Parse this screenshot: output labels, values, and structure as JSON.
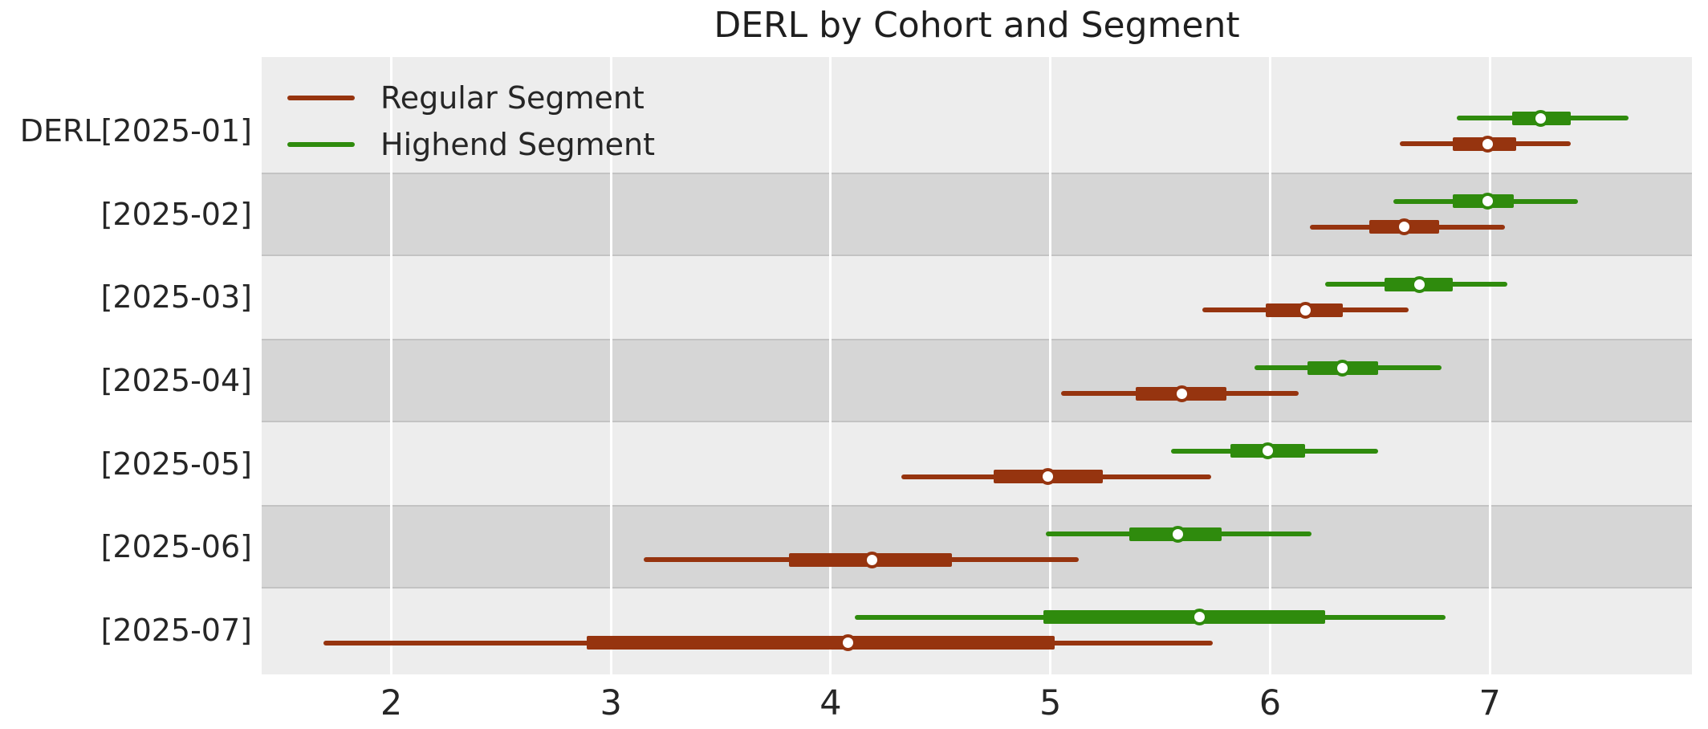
{
  "figure": {
    "title": "DERL by Cohort and Segment"
  },
  "chart_data": {
    "type": "forest",
    "title": "DERL by Cohort and Segment",
    "categories": [
      "DERL[2025-01]",
      "[2025-02]",
      "[2025-03]",
      "[2025-04]",
      "[2025-05]",
      "[2025-06]",
      "[2025-07]"
    ],
    "xlabel": "",
    "ylabel": "",
    "xticks": [
      2,
      3,
      4,
      5,
      6,
      7
    ],
    "xlim": [
      1.41,
      7.92
    ],
    "grid": "vertical-white-lines",
    "legend_position": "upper left",
    "band_colors": {
      "light": "#EDEDED",
      "dark": "#D6D6D6"
    },
    "series": [
      {
        "name": "Regular Segment",
        "color": "#96340F",
        "rows": [
          {
            "category": "DERL[2025-01]",
            "median": 6.99,
            "hdi_50": [
              6.83,
              7.12
            ],
            "hdi_94": [
              6.59,
              7.37
            ]
          },
          {
            "category": "[2025-02]",
            "median": 6.61,
            "hdi_50": [
              6.45,
              6.77
            ],
            "hdi_94": [
              6.18,
              7.07
            ]
          },
          {
            "category": "[2025-03]",
            "median": 6.16,
            "hdi_50": [
              5.98,
              6.33
            ],
            "hdi_94": [
              5.69,
              6.63
            ]
          },
          {
            "category": "[2025-04]",
            "median": 5.6,
            "hdi_50": [
              5.39,
              5.8
            ],
            "hdi_94": [
              5.05,
              6.13
            ]
          },
          {
            "category": "[2025-05]",
            "median": 4.99,
            "hdi_50": [
              4.74,
              5.24
            ],
            "hdi_94": [
              4.32,
              5.73
            ]
          },
          {
            "category": "[2025-06]",
            "median": 4.19,
            "hdi_50": [
              3.81,
              4.55
            ],
            "hdi_94": [
              3.15,
              5.13
            ]
          },
          {
            "category": "[2025-07]",
            "median": 4.08,
            "hdi_50": [
              2.89,
              5.02
            ],
            "hdi_94": [
              1.69,
              5.74
            ]
          }
        ]
      },
      {
        "name": "Highend Segment",
        "color": "#2F8B0D",
        "rows": [
          {
            "category": "DERL[2025-01]",
            "median": 7.23,
            "hdi_50": [
              7.1,
              7.37
            ],
            "hdi_94": [
              6.85,
              7.63
            ]
          },
          {
            "category": "[2025-02]",
            "median": 6.99,
            "hdi_50": [
              6.83,
              7.11
            ],
            "hdi_94": [
              6.56,
              7.4
            ]
          },
          {
            "category": "[2025-03]",
            "median": 6.68,
            "hdi_50": [
              6.52,
              6.83
            ],
            "hdi_94": [
              6.25,
              7.08
            ]
          },
          {
            "category": "[2025-04]",
            "median": 6.33,
            "hdi_50": [
              6.17,
              6.49
            ],
            "hdi_94": [
              5.93,
              6.78
            ]
          },
          {
            "category": "[2025-05]",
            "median": 5.99,
            "hdi_50": [
              5.82,
              6.16
            ],
            "hdi_94": [
              5.55,
              6.49
            ]
          },
          {
            "category": "[2025-06]",
            "median": 5.58,
            "hdi_50": [
              5.36,
              5.78
            ],
            "hdi_94": [
              4.98,
              6.19
            ]
          },
          {
            "category": "[2025-07]",
            "median": 5.68,
            "hdi_50": [
              4.97,
              6.25
            ],
            "hdi_94": [
              4.11,
              6.8
            ]
          }
        ]
      }
    ]
  }
}
